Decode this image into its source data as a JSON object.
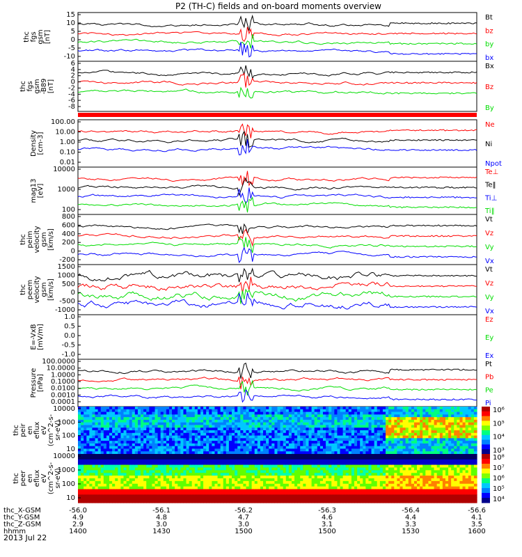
{
  "title": "P2 (TH-C) fields and on-board moments overview",
  "date_label": "2013 Jul 22",
  "colors": {
    "black": "#000000",
    "red": "#ff0000",
    "green": "#00dd00",
    "blue": "#0000ff"
  },
  "chart_data": [
    {
      "id": "fgs",
      "type": "line",
      "ylabel": [
        "thc",
        "fgs",
        "gsm",
        "[nT]"
      ],
      "ylim": [
        -15,
        15
      ],
      "ticks": [
        "15",
        "10",
        "5",
        "0",
        "-5",
        "-10"
      ],
      "series": [
        {
          "name": "Bt",
          "color": "black"
        },
        {
          "name": "bz",
          "color": "red"
        },
        {
          "name": "by",
          "color": "green"
        },
        {
          "name": "bx",
          "color": "blue"
        }
      ]
    },
    {
      "id": "fgs_dsl",
      "type": "line",
      "ylabel": [
        "thc",
        "fgs",
        "gsm",
        "-B89",
        "[nT]"
      ],
      "ylim": [
        -8,
        6
      ],
      "ticks": [
        "6",
        "4",
        "2",
        "0",
        "-2",
        "-4",
        "-6",
        "-8"
      ],
      "series": [
        {
          "name": "Bx",
          "color": "black"
        },
        {
          "name": "Bz",
          "color": "red"
        },
        {
          "name": "By",
          "color": "green"
        }
      ]
    },
    {
      "id": "density",
      "type": "line",
      "ylabel": [
        "Density",
        "[cm-3]"
      ],
      "log": true,
      "ylim": [
        0.01,
        300
      ],
      "ticks": [
        "100.00",
        "10.00",
        "1.00",
        "0.10",
        "0.01"
      ],
      "series": [
        {
          "name": "Ne",
          "color": "red"
        },
        {
          "name": "Ni",
          "color": "black"
        },
        {
          "name": "Npot",
          "color": "blue"
        }
      ]
    },
    {
      "id": "temp",
      "type": "line",
      "ylabel": [
        "mag13",
        "[eV]"
      ],
      "log": true,
      "ylim": [
        30,
        12000
      ],
      "ticks": [
        "10000",
        "1000",
        "100"
      ],
      "series": [
        {
          "name": "Te⊥",
          "color": "red"
        },
        {
          "name": "Te‖",
          "color": "black"
        },
        {
          "name": "Ti⊥",
          "color": "blue"
        },
        {
          "name": "Ti‖",
          "color": "green"
        }
      ]
    },
    {
      "id": "vi",
      "type": "line",
      "ylabel": [
        "thc",
        "peim",
        "velocity",
        "gsm",
        "[km/s]"
      ],
      "ylim": [
        -300,
        800
      ],
      "ticks": [
        "800",
        "600",
        "400",
        "200",
        "0",
        "-200"
      ],
      "series": [
        {
          "name": "Vt",
          "color": "black"
        },
        {
          "name": "Vz",
          "color": "red"
        },
        {
          "name": "Vy",
          "color": "green"
        },
        {
          "name": "Vx",
          "color": "blue"
        }
      ]
    },
    {
      "id": "ve",
      "type": "line",
      "ylabel": [
        "thc",
        "peem",
        "velocity",
        "gsm",
        "[km/s]"
      ],
      "ylim": [
        -1700,
        1700
      ],
      "ticks": [
        "1500",
        "1000",
        "500",
        "0",
        "-500",
        "-1000"
      ],
      "series": [
        {
          "name": "Vt",
          "color": "black"
        },
        {
          "name": "Vz",
          "color": "red"
        },
        {
          "name": "Vy",
          "color": "green"
        },
        {
          "name": "Vx",
          "color": "blue"
        }
      ]
    },
    {
      "id": "efield",
      "type": "line",
      "ylabel": [
        "E=-VxB",
        "[mV/m]"
      ],
      "ylim": [
        -1,
        1
      ],
      "ticks": [
        "1.0",
        "0.5",
        "0.0",
        "-0.5",
        "-1.0"
      ],
      "series": [
        {
          "name": "Ez",
          "color": "red"
        },
        {
          "name": "Ey",
          "color": "green"
        },
        {
          "name": "Ex",
          "color": "blue"
        }
      ]
    },
    {
      "id": "pressure",
      "type": "line",
      "ylabel": [
        "Pressure",
        "[nPa]"
      ],
      "log": true,
      "ylim": [
        0.0001,
        100
      ],
      "ticks": [
        "100.0000",
        "10.0000",
        "1.0000",
        "0.1000",
        "0.0100",
        "0.0010",
        "0.0001"
      ],
      "series": [
        {
          "name": "Pt",
          "color": "black"
        },
        {
          "name": "Pb",
          "color": "red"
        },
        {
          "name": "Pe",
          "color": "green"
        },
        {
          "name": "Pi",
          "color": "blue"
        }
      ]
    },
    {
      "id": "ion_spec",
      "type": "heatmap",
      "ylabel": [
        "thc",
        "peir",
        "en",
        "eflux",
        "eV",
        "(cm^2-s-",
        "sr-eV)"
      ],
      "log": true,
      "ylim": [
        10,
        20000
      ],
      "ticks": [
        "10000",
        "1000",
        "100",
        "10"
      ],
      "colorbar_ticks": [
        "10⁶",
        "10⁵",
        "10⁴",
        "10³"
      ]
    },
    {
      "id": "ele_spec",
      "type": "heatmap",
      "ylabel": [
        "thc",
        "peer",
        "en",
        "eflux",
        "eV",
        "(cm^2-s-",
        "sr-eV)"
      ],
      "log": true,
      "ylim": [
        10,
        20000
      ],
      "ticks": [
        "10000",
        "1000",
        "100",
        "10"
      ],
      "colorbar_ticks": [
        "10⁸",
        "10⁷",
        "10⁶",
        "10⁵",
        "10⁴"
      ]
    }
  ],
  "x_axis": {
    "rows": [
      {
        "label": "thc_X-GSM",
        "values": [
          "-56.0",
          "-56.1",
          "-56.2",
          "-56.3",
          "-56.4",
          "-56.6"
        ]
      },
      {
        "label": "thc_Y-GSM",
        "values": [
          "4.9",
          "4.8",
          "4.7",
          "4.6",
          "4.4",
          "4.1"
        ]
      },
      {
        "label": "thc_Z-GSM",
        "values": [
          "2.9",
          "3.0",
          "3.0",
          "3.1",
          "3.3",
          "3.5"
        ]
      },
      {
        "label": "hhmm",
        "values": [
          "1400",
          "1430",
          "1500",
          "1500",
          "1530",
          "1600"
        ]
      }
    ]
  }
}
